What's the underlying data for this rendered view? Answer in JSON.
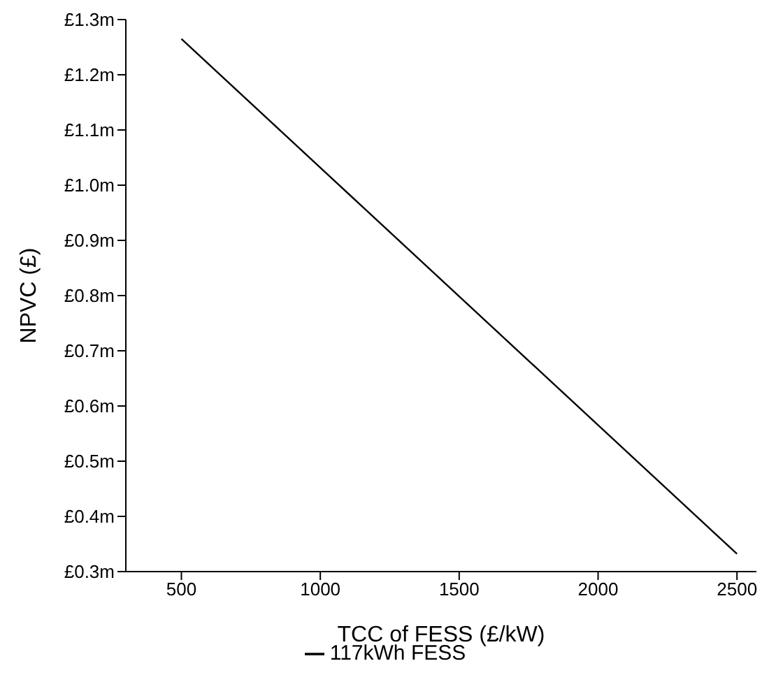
{
  "chart_data": {
    "type": "line",
    "xlabel": "TCC of FESS (£/kW)",
    "ylabel": "NPVC (£)",
    "series": [
      {
        "name": "117kWh FESS",
        "color": "#000000",
        "x": [
          500,
          2500
        ],
        "values": [
          1.265,
          0.332
        ]
      }
    ],
    "xlim": [
      300,
      2570
    ],
    "xticks": [
      500,
      1000,
      1500,
      2000,
      2500
    ],
    "ylim": [
      0.3,
      1.3
    ],
    "yticks": [
      {
        "value": 0.3,
        "label": "£0.3m"
      },
      {
        "value": 0.4,
        "label": "£0.4m"
      },
      {
        "value": 0.5,
        "label": "£0.5m"
      },
      {
        "value": 0.6,
        "label": "£0.6m"
      },
      {
        "value": 0.7,
        "label": "£0.7m"
      },
      {
        "value": 0.8,
        "label": "£0.8m"
      },
      {
        "value": 0.9,
        "label": "£0.9m"
      },
      {
        "value": 1.0,
        "label": "£1.0m"
      },
      {
        "value": 1.1,
        "label": "£1.1m"
      },
      {
        "value": 1.2,
        "label": "£1.2m"
      },
      {
        "value": 1.3,
        "label": "£1.3m"
      }
    ],
    "grid": false,
    "legend": "bottom",
    "marker": "none",
    "line_style": "solid"
  }
}
